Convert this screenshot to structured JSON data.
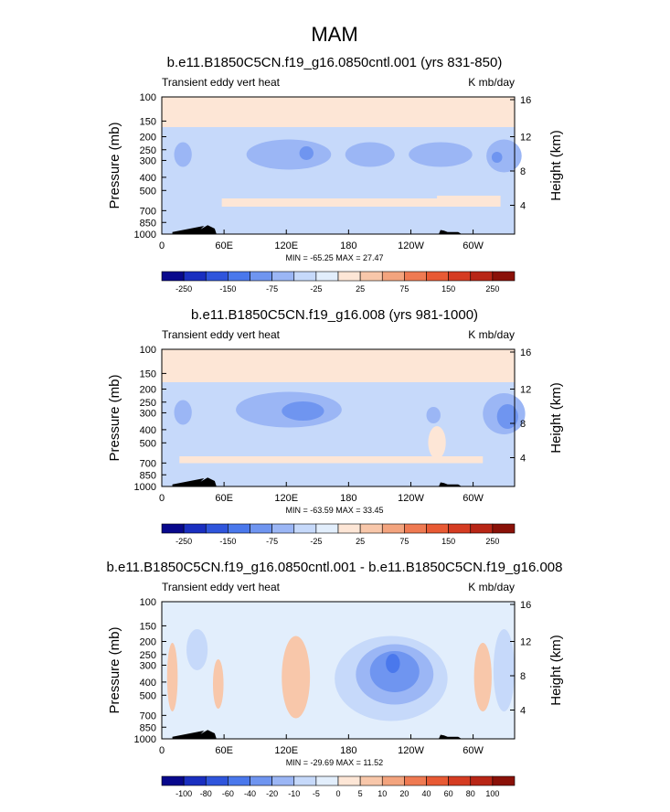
{
  "figure_title": "MAM",
  "chart_data": [
    {
      "type": "heatmap",
      "title": "b.e11.B1850C5CN.f19_g16.0850cntl.001 (yrs 831-850)",
      "left_string": "Transient eddy vert heat",
      "right_string": "K mb/day",
      "xlabel": "",
      "ylabel": "Pressure (mb)",
      "ylabel_right": "Height (km)",
      "x_ticks": [
        "0",
        "60E",
        "120E",
        "180",
        "120W",
        "60W"
      ],
      "y_ticks": [
        "100",
        "150",
        "200",
        "250",
        "300",
        "400",
        "500",
        "700",
        "850",
        "1000"
      ],
      "y_ticks_right": [
        "16",
        "12",
        "8",
        "4"
      ],
      "stats": "MIN = -65.25  MAX = 27.47",
      "colorbar": {
        "labels": [
          "-250",
          "-150",
          "-75",
          "-25",
          "25",
          "75",
          "150",
          "250"
        ],
        "colors": [
          "#08088c",
          "#1a2fc0",
          "#2f55dc",
          "#4a78ec",
          "#6f95f0",
          "#9bb6f5",
          "#c6d9fa",
          "#e2eefc",
          "#fde6d6",
          "#f8c7aa",
          "#f3a47e",
          "#ef7a52",
          "#e85a34",
          "#d53c22",
          "#b82616",
          "#8a1108"
        ]
      }
    },
    {
      "type": "heatmap",
      "title": "b.e11.B1850C5CN.f19_g16.008 (yrs 981-1000)",
      "left_string": "Transient eddy vert heat",
      "right_string": "K mb/day",
      "xlabel": "",
      "ylabel": "Pressure (mb)",
      "ylabel_right": "Height (km)",
      "x_ticks": [
        "0",
        "60E",
        "120E",
        "180",
        "120W",
        "60W"
      ],
      "y_ticks": [
        "100",
        "150",
        "200",
        "250",
        "300",
        "400",
        "500",
        "700",
        "850",
        "1000"
      ],
      "y_ticks_right": [
        "16",
        "12",
        "8",
        "4"
      ],
      "stats": "MIN = -63.59  MAX = 33.45",
      "colorbar": {
        "labels": [
          "-250",
          "-150",
          "-75",
          "-25",
          "25",
          "75",
          "150",
          "250"
        ],
        "colors": [
          "#08088c",
          "#1a2fc0",
          "#2f55dc",
          "#4a78ec",
          "#6f95f0",
          "#9bb6f5",
          "#c6d9fa",
          "#e2eefc",
          "#fde6d6",
          "#f8c7aa",
          "#f3a47e",
          "#ef7a52",
          "#e85a34",
          "#d53c22",
          "#b82616",
          "#8a1108"
        ]
      }
    },
    {
      "type": "heatmap",
      "title": "b.e11.B1850C5CN.f19_g16.0850cntl.001 - b.e11.B1850C5CN.f19_g16.008",
      "left_string": "Transient eddy vert heat",
      "right_string": "K mb/day",
      "xlabel": "",
      "ylabel": "Pressure (mb)",
      "ylabel_right": "Height (km)",
      "x_ticks": [
        "0",
        "60E",
        "120E",
        "180",
        "120W",
        "60W"
      ],
      "y_ticks": [
        "100",
        "150",
        "200",
        "250",
        "300",
        "400",
        "500",
        "700",
        "850",
        "1000"
      ],
      "y_ticks_right": [
        "16",
        "12",
        "8",
        "4"
      ],
      "stats": "MIN = -29.69  MAX = 11.52",
      "colorbar": {
        "labels": [
          "-100",
          "-80",
          "-60",
          "-40",
          "-20",
          "-10",
          "-5",
          "0",
          "5",
          "10",
          "20",
          "40",
          "60",
          "80",
          "100"
        ],
        "colors": [
          "#08088c",
          "#1a2fc0",
          "#2f55dc",
          "#4a78ec",
          "#6f95f0",
          "#9bb6f5",
          "#c6d9fa",
          "#e2eefc",
          "#fde6d6",
          "#f8c7aa",
          "#f3a47e",
          "#ef7a52",
          "#e85a34",
          "#d53c22",
          "#b82616",
          "#8a1108"
        ]
      }
    }
  ]
}
